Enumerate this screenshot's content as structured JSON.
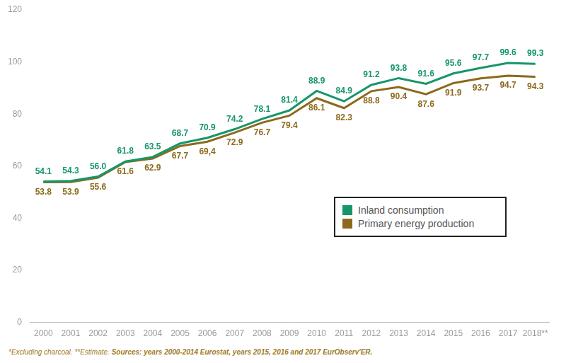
{
  "chart_data": {
    "type": "line",
    "categories": [
      "2000",
      "2001",
      "2002",
      "2003",
      "2004",
      "2005",
      "2006",
      "2007",
      "2008",
      "2009",
      "2010",
      "2011",
      "2012",
      "2013",
      "2014",
      "2015",
      "2016",
      "2017",
      "2018**"
    ],
    "series": [
      {
        "name": "Inland consumption",
        "color": "#16966a",
        "values": [
          54.1,
          54.3,
          56.0,
          61.8,
          63.5,
          68.7,
          70.9,
          74.2,
          78.1,
          81.4,
          88.9,
          84.9,
          91.2,
          93.8,
          91.6,
          95.6,
          97.7,
          99.6,
          99.3
        ],
        "value_labels": [
          "54.1",
          "54.3",
          "56.0",
          "61.8",
          "63.5",
          "68.7",
          "70.9",
          "74.2",
          "78.1",
          "81.4",
          "88.9",
          "84.9",
          "91.2",
          "93.8",
          "91.6",
          "95.6",
          "97.7",
          "99.6",
          "99.3"
        ]
      },
      {
        "name": "Primary energy production",
        "color": "#8c6a1c",
        "values": [
          53.8,
          53.9,
          55.6,
          61.6,
          62.9,
          67.7,
          69.4,
          72.9,
          76.7,
          79.4,
          86.1,
          82.3,
          88.8,
          90.4,
          87.6,
          91.9,
          93.7,
          94.7,
          94.3
        ],
        "value_labels": [
          "53.8",
          "53.9",
          "55.6",
          "61.6",
          "62.9",
          "67.7",
          "69,4",
          "72.9",
          "76.7",
          "79.4",
          "86.1",
          "82.3",
          "88.8",
          "90.4",
          "87.6",
          "91.9",
          "93.7",
          "94.7",
          "94.3"
        ]
      }
    ],
    "ylim": [
      0,
      120
    ],
    "yticks": [
      0,
      20,
      40,
      60,
      80,
      100,
      120
    ],
    "grid": false,
    "legend": "lower right",
    "data_labels": true,
    "annotations": [
      "*Excluding charcoal. **Estimate.",
      "Sources: years 2000-2014 Eurostat, years 2015, 2016 and 2017 EurObserv'ER."
    ]
  }
}
